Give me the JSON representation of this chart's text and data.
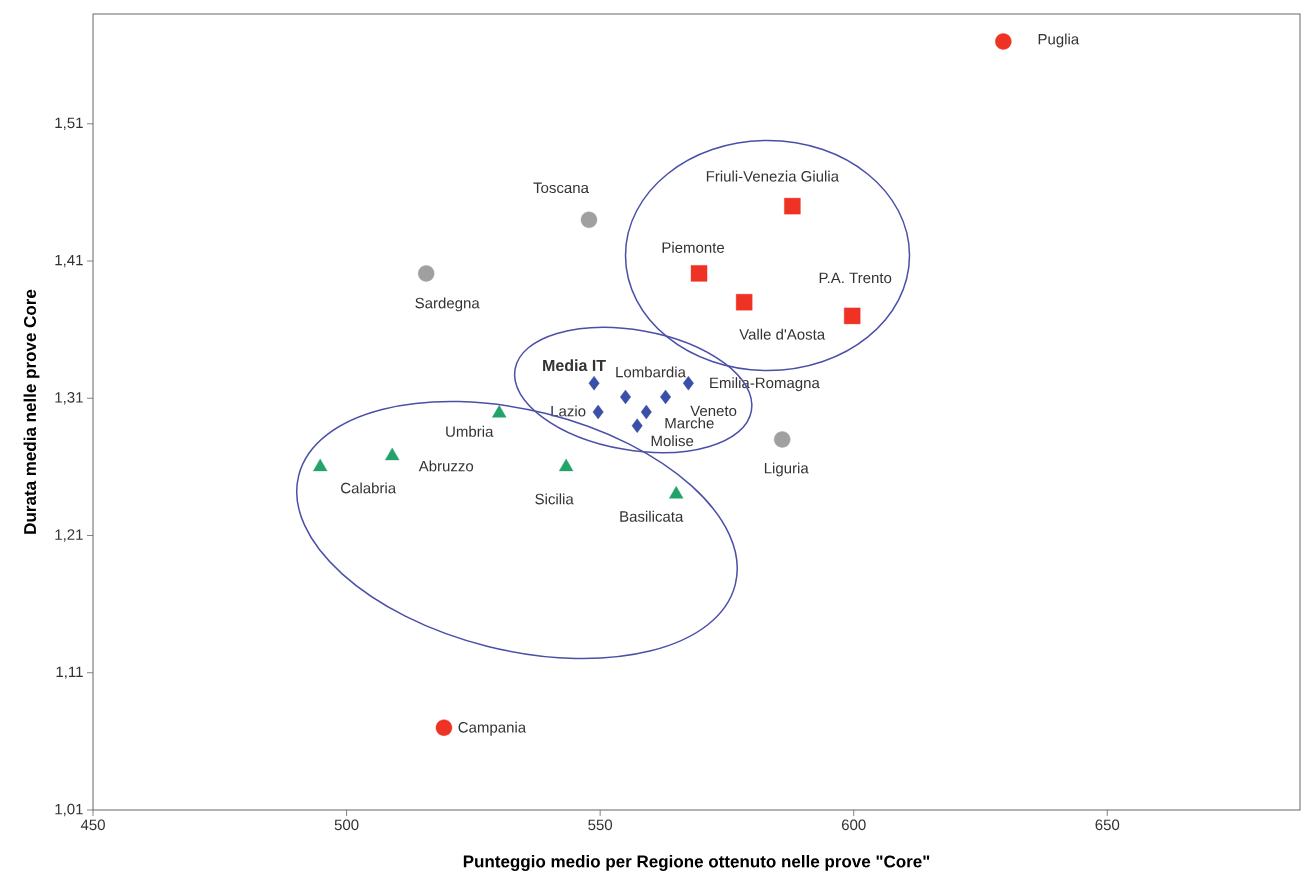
{
  "chart_data": {
    "type": "scatter",
    "xlabel": "Punteggio medio per Regione ottenuto nelle prove  \"Core\"",
    "ylabel": "Durata media nelle prove Core",
    "xlim": [
      450,
      688
    ],
    "ylim": [
      1.01,
      1.59
    ],
    "xticks": [
      450,
      500,
      550,
      600,
      650
    ],
    "yticks": [
      {
        "value": 1.01,
        "label": "1,01"
      },
      {
        "value": 1.11,
        "label": "1,11"
      },
      {
        "value": 1.21,
        "label": "1,21"
      },
      {
        "value": 1.31,
        "label": "1,31"
      },
      {
        "value": 1.41,
        "label": "1,41"
      },
      {
        "value": 1.51,
        "label": "1,51"
      }
    ],
    "series": [
      {
        "color": "#ee3224",
        "marker": "circle",
        "x": [
          629.5,
          519.2
        ],
        "values": [
          1.57,
          1.07
        ]
      },
      {
        "color": "#ee3224",
        "marker": "square",
        "x": [
          587.9,
          569.5,
          578.4,
          599.7
        ],
        "values": [
          1.45,
          1.401,
          1.38,
          1.37
        ]
      },
      {
        "color": "#a0a0a0",
        "marker": "circle",
        "x": [
          547.8,
          515.7,
          585.9
        ],
        "values": [
          1.44,
          1.401,
          1.28
        ]
      },
      {
        "color": "#3a4fa8",
        "marker": "diamond",
        "x": [
          548.8,
          555.0,
          567.4,
          562.9,
          549.6,
          559.1,
          557.3
        ],
        "values": [
          1.321,
          1.311,
          1.321,
          1.311,
          1.3,
          1.3,
          1.29
        ]
      },
      {
        "color": "#22a36a",
        "marker": "triangle",
        "x": [
          530.1,
          509.0,
          494.8,
          543.3,
          565.0
        ],
        "values": [
          1.299,
          1.268,
          1.26,
          1.26,
          1.24
        ]
      }
    ],
    "annotations": [
      {
        "text": "Puglia",
        "x": 629.5,
        "y": 1.57
      },
      {
        "text": "Campania",
        "x": 519.2,
        "y": 1.07
      },
      {
        "text": "Friuli-Venezia Giulia",
        "x": 587.9,
        "y": 1.45
      },
      {
        "text": "Piemonte",
        "x": 569.5,
        "y": 1.401
      },
      {
        "text": "Valle d'Aosta",
        "x": 578.4,
        "y": 1.38
      },
      {
        "text": "P.A. Trento",
        "x": 599.7,
        "y": 1.37
      },
      {
        "text": "Toscana",
        "x": 547.8,
        "y": 1.44
      },
      {
        "text": "Sardegna",
        "x": 515.7,
        "y": 1.401
      },
      {
        "text": "Liguria",
        "x": 585.9,
        "y": 1.28
      },
      {
        "text": "Media  IT",
        "x": 548.8,
        "y": 1.321
      },
      {
        "text": "Lombardia",
        "x": 555.0,
        "y": 1.311
      },
      {
        "text": "Emilia-Romagna",
        "x": 567.4,
        "y": 1.321
      },
      {
        "text": "Veneto",
        "x": 562.9,
        "y": 1.311
      },
      {
        "text": "Lazio",
        "x": 549.6,
        "y": 1.3
      },
      {
        "text": "Marche",
        "x": 559.1,
        "y": 1.3
      },
      {
        "text": "Molise",
        "x": 557.3,
        "y": 1.29
      },
      {
        "text": "Umbria",
        "x": 530.1,
        "y": 1.299
      },
      {
        "text": "Abruzzo",
        "x": 509.0,
        "y": 1.268
      },
      {
        "text": "Calabria",
        "x": 494.8,
        "y": 1.26
      },
      {
        "text": "Sicilia",
        "x": 543.3,
        "y": 1.26
      },
      {
        "text": "Basilicata",
        "x": 565.0,
        "y": 1.24
      }
    ]
  }
}
